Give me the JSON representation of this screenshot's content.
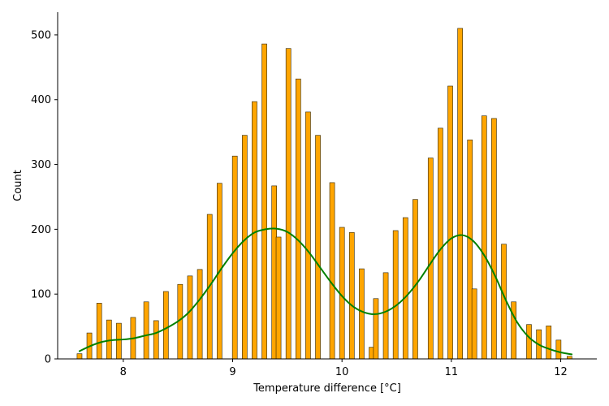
{
  "chart_data": {
    "type": "bar",
    "title": "",
    "xlabel": "Temperature difference [°C]",
    "ylabel": "Count",
    "xlim": [
      7.4,
      12.33
    ],
    "ylim": [
      0,
      535
    ],
    "x_ticks": [
      8,
      9,
      10,
      11,
      12
    ],
    "y_ticks": [
      0,
      100,
      200,
      300,
      400,
      500
    ],
    "grid": false,
    "legend": "none",
    "bar_width": 0.045,
    "colors": {
      "bar_fill": "#ffa500",
      "bar_edge": "#2f2400",
      "density_line": "#008000"
    },
    "series": [
      {
        "kind": "histogram",
        "x": [
          7.6,
          7.69,
          7.78,
          7.87,
          7.96,
          8.09,
          8.21,
          8.3,
          8.39,
          8.52,
          8.61,
          8.7,
          8.79,
          8.88,
          9.02,
          9.11,
          9.2,
          9.29,
          9.38,
          9.42,
          9.51,
          9.6,
          9.69,
          9.78,
          9.91,
          10.0,
          10.09,
          10.18,
          10.27,
          10.31,
          10.4,
          10.49,
          10.58,
          10.67,
          10.81,
          10.9,
          10.99,
          11.08,
          11.17,
          11.21,
          11.3,
          11.39,
          11.48,
          11.57,
          11.71,
          11.8,
          11.89,
          11.98,
          12.08
        ],
        "values": [
          8,
          40,
          86,
          60,
          55,
          64,
          88,
          59,
          104,
          115,
          128,
          138,
          223,
          271,
          313,
          345,
          397,
          486,
          267,
          188,
          479,
          432,
          381,
          345,
          272,
          203,
          195,
          139,
          18,
          93,
          133,
          198,
          218,
          246,
          310,
          356,
          421,
          510,
          338,
          108,
          375,
          371,
          177,
          88,
          53,
          45,
          51,
          29,
          4
        ]
      },
      {
        "kind": "density",
        "x": [
          7.6,
          7.7,
          7.8,
          7.9,
          8.0,
          8.1,
          8.2,
          8.3,
          8.4,
          8.5,
          8.6,
          8.7,
          8.8,
          8.9,
          9.0,
          9.1,
          9.2,
          9.3,
          9.4,
          9.5,
          9.6,
          9.7,
          9.8,
          9.9,
          10.0,
          10.1,
          10.2,
          10.3,
          10.4,
          10.5,
          10.6,
          10.7,
          10.8,
          10.9,
          11.0,
          11.1,
          11.2,
          11.3,
          11.4,
          11.5,
          11.6,
          11.7,
          11.8,
          11.9,
          12.0,
          12.1
        ],
        "values": [
          12,
          20,
          26,
          29,
          30,
          32,
          36,
          40,
          48,
          58,
          72,
          92,
          115,
          140,
          163,
          182,
          195,
          200,
          201,
          196,
          183,
          164,
          141,
          118,
          97,
          81,
          72,
          69,
          73,
          83,
          99,
          120,
          145,
          169,
          186,
          191,
          182,
          160,
          128,
          90,
          57,
          35,
          22,
          15,
          10,
          7
        ]
      }
    ]
  }
}
